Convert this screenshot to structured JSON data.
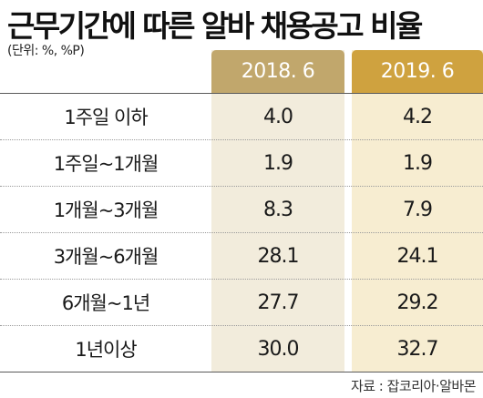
{
  "title": "근무기간에 따른 알바 채용공고 비율",
  "unit": "(단위: %, %P)",
  "source": "자료 : 잡코리아·알바몬",
  "chart_data": {
    "type": "table",
    "columns": [
      "2018. 6",
      "2019. 6"
    ],
    "rows": [
      {
        "label": "1주일 이하",
        "values": [
          "4.0",
          "4.2"
        ]
      },
      {
        "label": "1주일~1개월",
        "values": [
          "1.9",
          "1.9"
        ]
      },
      {
        "label": "1개월~3개월",
        "values": [
          "8.3",
          "7.9"
        ]
      },
      {
        "label": "3개월~6개월",
        "values": [
          "28.1",
          "24.1"
        ]
      },
      {
        "label": "6개월~1년",
        "values": [
          "27.7",
          "29.2"
        ]
      },
      {
        "label": "1년이상",
        "values": [
          "30.0",
          "32.7"
        ]
      }
    ],
    "colors": {
      "col_2018": "#c1a76c",
      "col_2019": "#cfa23f",
      "bg_2018": "#f2ecdc",
      "bg_2019": "#f7edd1"
    }
  }
}
